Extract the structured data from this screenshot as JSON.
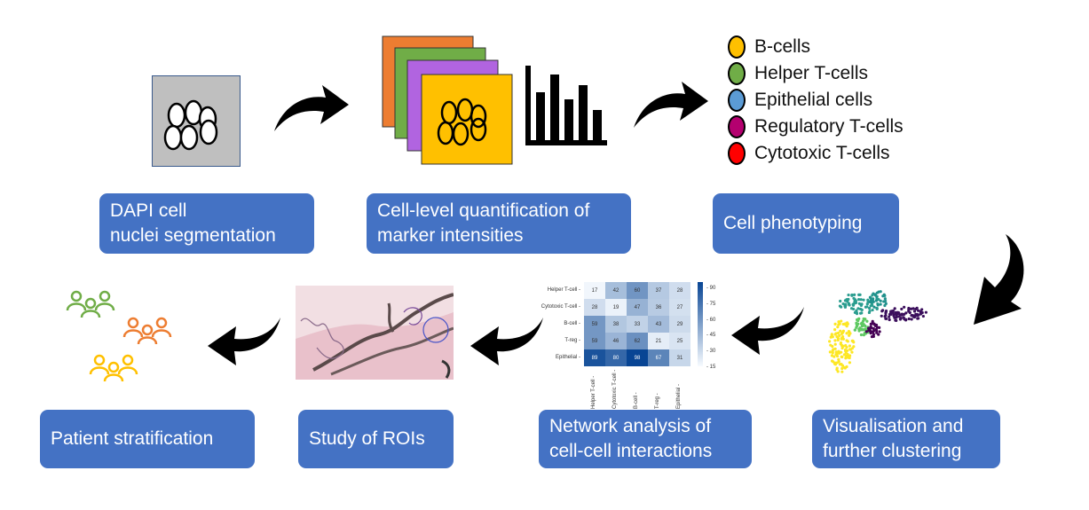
{
  "steps": {
    "segmentation": {
      "lines": [
        "DAPI cell",
        "nuclei segmentation"
      ]
    },
    "quantification": {
      "lines": [
        "Cell-level quantification of",
        "marker intensities"
      ]
    },
    "phenotyping": {
      "lines": [
        "Cell phenotyping"
      ]
    },
    "visualisation": {
      "lines": [
        "Visualisation and",
        "further clustering"
      ]
    },
    "network": {
      "lines": [
        "Network analysis of",
        "cell-cell interactions"
      ]
    },
    "rois": {
      "lines": [
        "Study of ROIs"
      ]
    },
    "stratification": {
      "lines": [
        "Patient stratification"
      ]
    }
  },
  "legend": [
    {
      "label": "B-cells",
      "color": "#ffc000"
    },
    {
      "label": "Helper T-cells",
      "color": "#70ad47"
    },
    {
      "label": "Epithelial cells",
      "color": "#5b9bd5"
    },
    {
      "label": "Regulatory T-cells",
      "color": "#b4006f"
    },
    {
      "label": "Cytotoxic T-cells",
      "color": "#ff0000"
    }
  ],
  "colors": {
    "box": "#4472c4",
    "layer_orange": "#ed7d31",
    "layer_green": "#70ad47",
    "layer_purple": "#b164e0",
    "layer_yellow": "#ffc000",
    "segmentation_bg": "#bfbfbf"
  },
  "heatmap": {
    "rows": [
      "Helper T-cell",
      "Cytotoxic T-cell",
      "B-cell",
      "T-reg",
      "Epithelial"
    ],
    "cols": [
      "Helper T-cell",
      "Cytotoxic T-cell",
      "B-cell",
      "T-reg",
      "Epithelial"
    ],
    "values": [
      [
        17,
        42,
        60,
        37,
        28
      ],
      [
        28,
        19,
        47,
        36,
        27
      ],
      [
        59,
        38,
        33,
        43,
        29
      ],
      [
        59,
        46,
        62,
        21,
        25
      ],
      [
        89,
        80,
        98,
        67,
        31
      ]
    ],
    "colorbar_ticks": [
      "90",
      "75",
      "60",
      "45",
      "30",
      "15"
    ]
  },
  "patient_groups": [
    {
      "color": "#70ad47"
    },
    {
      "color": "#ed7d31"
    },
    {
      "color": "#ffc000"
    }
  ]
}
